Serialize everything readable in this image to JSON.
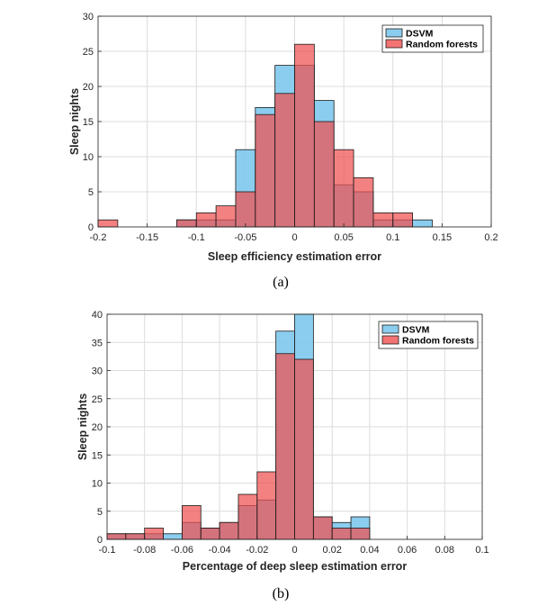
{
  "colors": {
    "dsvm": "#7ec8ec",
    "random_forests": "#f05050",
    "grid": "#dcdcdc",
    "axis": "#262626"
  },
  "chart_data": [
    {
      "type": "bar",
      "panel": "a",
      "caption": "(a)",
      "xlabel": "Sleep efficiency estimation error",
      "ylabel": "Sleep nights",
      "xlim": [
        -0.2,
        0.2
      ],
      "ylim": [
        0,
        30
      ],
      "xticks": [
        -0.2,
        -0.15,
        -0.1,
        -0.05,
        0,
        0.05,
        0.1,
        0.15,
        0.2
      ],
      "xtick_labels": [
        "-0.2",
        "-0.15",
        "-0.1",
        "-0.05",
        "0",
        "0.05",
        "0.1",
        "0.15",
        "0.2"
      ],
      "yticks": [
        0,
        5,
        10,
        15,
        20,
        25,
        30
      ],
      "ytick_labels": [
        "0",
        "5",
        "10",
        "15",
        "20",
        "25",
        "30"
      ],
      "bin_width": 0.02,
      "bin_starts": [
        -0.2,
        -0.18,
        -0.16,
        -0.14,
        -0.12,
        -0.1,
        -0.08,
        -0.06,
        -0.04,
        -0.02,
        0,
        0.02,
        0.04,
        0.06,
        0.08,
        0.1,
        0.12,
        0.14,
        0.16,
        0.18
      ],
      "series": [
        {
          "name": "DSVM",
          "values": [
            0,
            0,
            0,
            0,
            1,
            1,
            1,
            11,
            17,
            23,
            23,
            18,
            6,
            5,
            1,
            1,
            1,
            0,
            0,
            0
          ]
        },
        {
          "name": "Random forests",
          "values": [
            1,
            0,
            0,
            0,
            1,
            2,
            3,
            5,
            16,
            19,
            26,
            15,
            11,
            7,
            2,
            2,
            0,
            0,
            0,
            0
          ]
        }
      ],
      "legend_position": "top-right",
      "grid": true
    },
    {
      "type": "bar",
      "panel": "b",
      "caption": "(b)",
      "xlabel": "Percentage of deep sleep estimation error",
      "ylabel": "Sleep nights",
      "xlim": [
        -0.1,
        0.1
      ],
      "ylim": [
        0,
        40
      ],
      "xticks": [
        -0.1,
        -0.08,
        -0.06,
        -0.04,
        -0.02,
        0,
        0.02,
        0.04,
        0.06,
        0.08,
        0.1
      ],
      "xtick_labels": [
        "-0.1",
        "-0.08",
        "-0.06",
        "-0.04",
        "-0.02",
        "0",
        "0.02",
        "0.04",
        "0.06",
        "0.08",
        "0.1"
      ],
      "yticks": [
        0,
        5,
        10,
        15,
        20,
        25,
        30,
        35,
        40
      ],
      "ytick_labels": [
        "0",
        "5",
        "10",
        "15",
        "20",
        "25",
        "30",
        "35",
        "40"
      ],
      "bin_width": 0.01,
      "bin_starts": [
        -0.1,
        -0.09,
        -0.08,
        -0.07,
        -0.06,
        -0.05,
        -0.04,
        -0.03,
        -0.02,
        -0.01,
        0,
        0.01,
        0.02,
        0.03,
        0.04,
        0.05,
        0.06,
        0.07,
        0.08,
        0.09
      ],
      "series": [
        {
          "name": "DSVM",
          "values": [
            1,
            1,
            1,
            1,
            3,
            2,
            3,
            6,
            7,
            37,
            40,
            4,
            3,
            4,
            0,
            0,
            0,
            0,
            0,
            0
          ]
        },
        {
          "name": "Random forests",
          "values": [
            1,
            1,
            2,
            0,
            6,
            2,
            3,
            8,
            12,
            33,
            32,
            4,
            2,
            2,
            0,
            0,
            0,
            0,
            0,
            0
          ]
        }
      ],
      "legend_position": "top-right",
      "grid": true
    }
  ]
}
